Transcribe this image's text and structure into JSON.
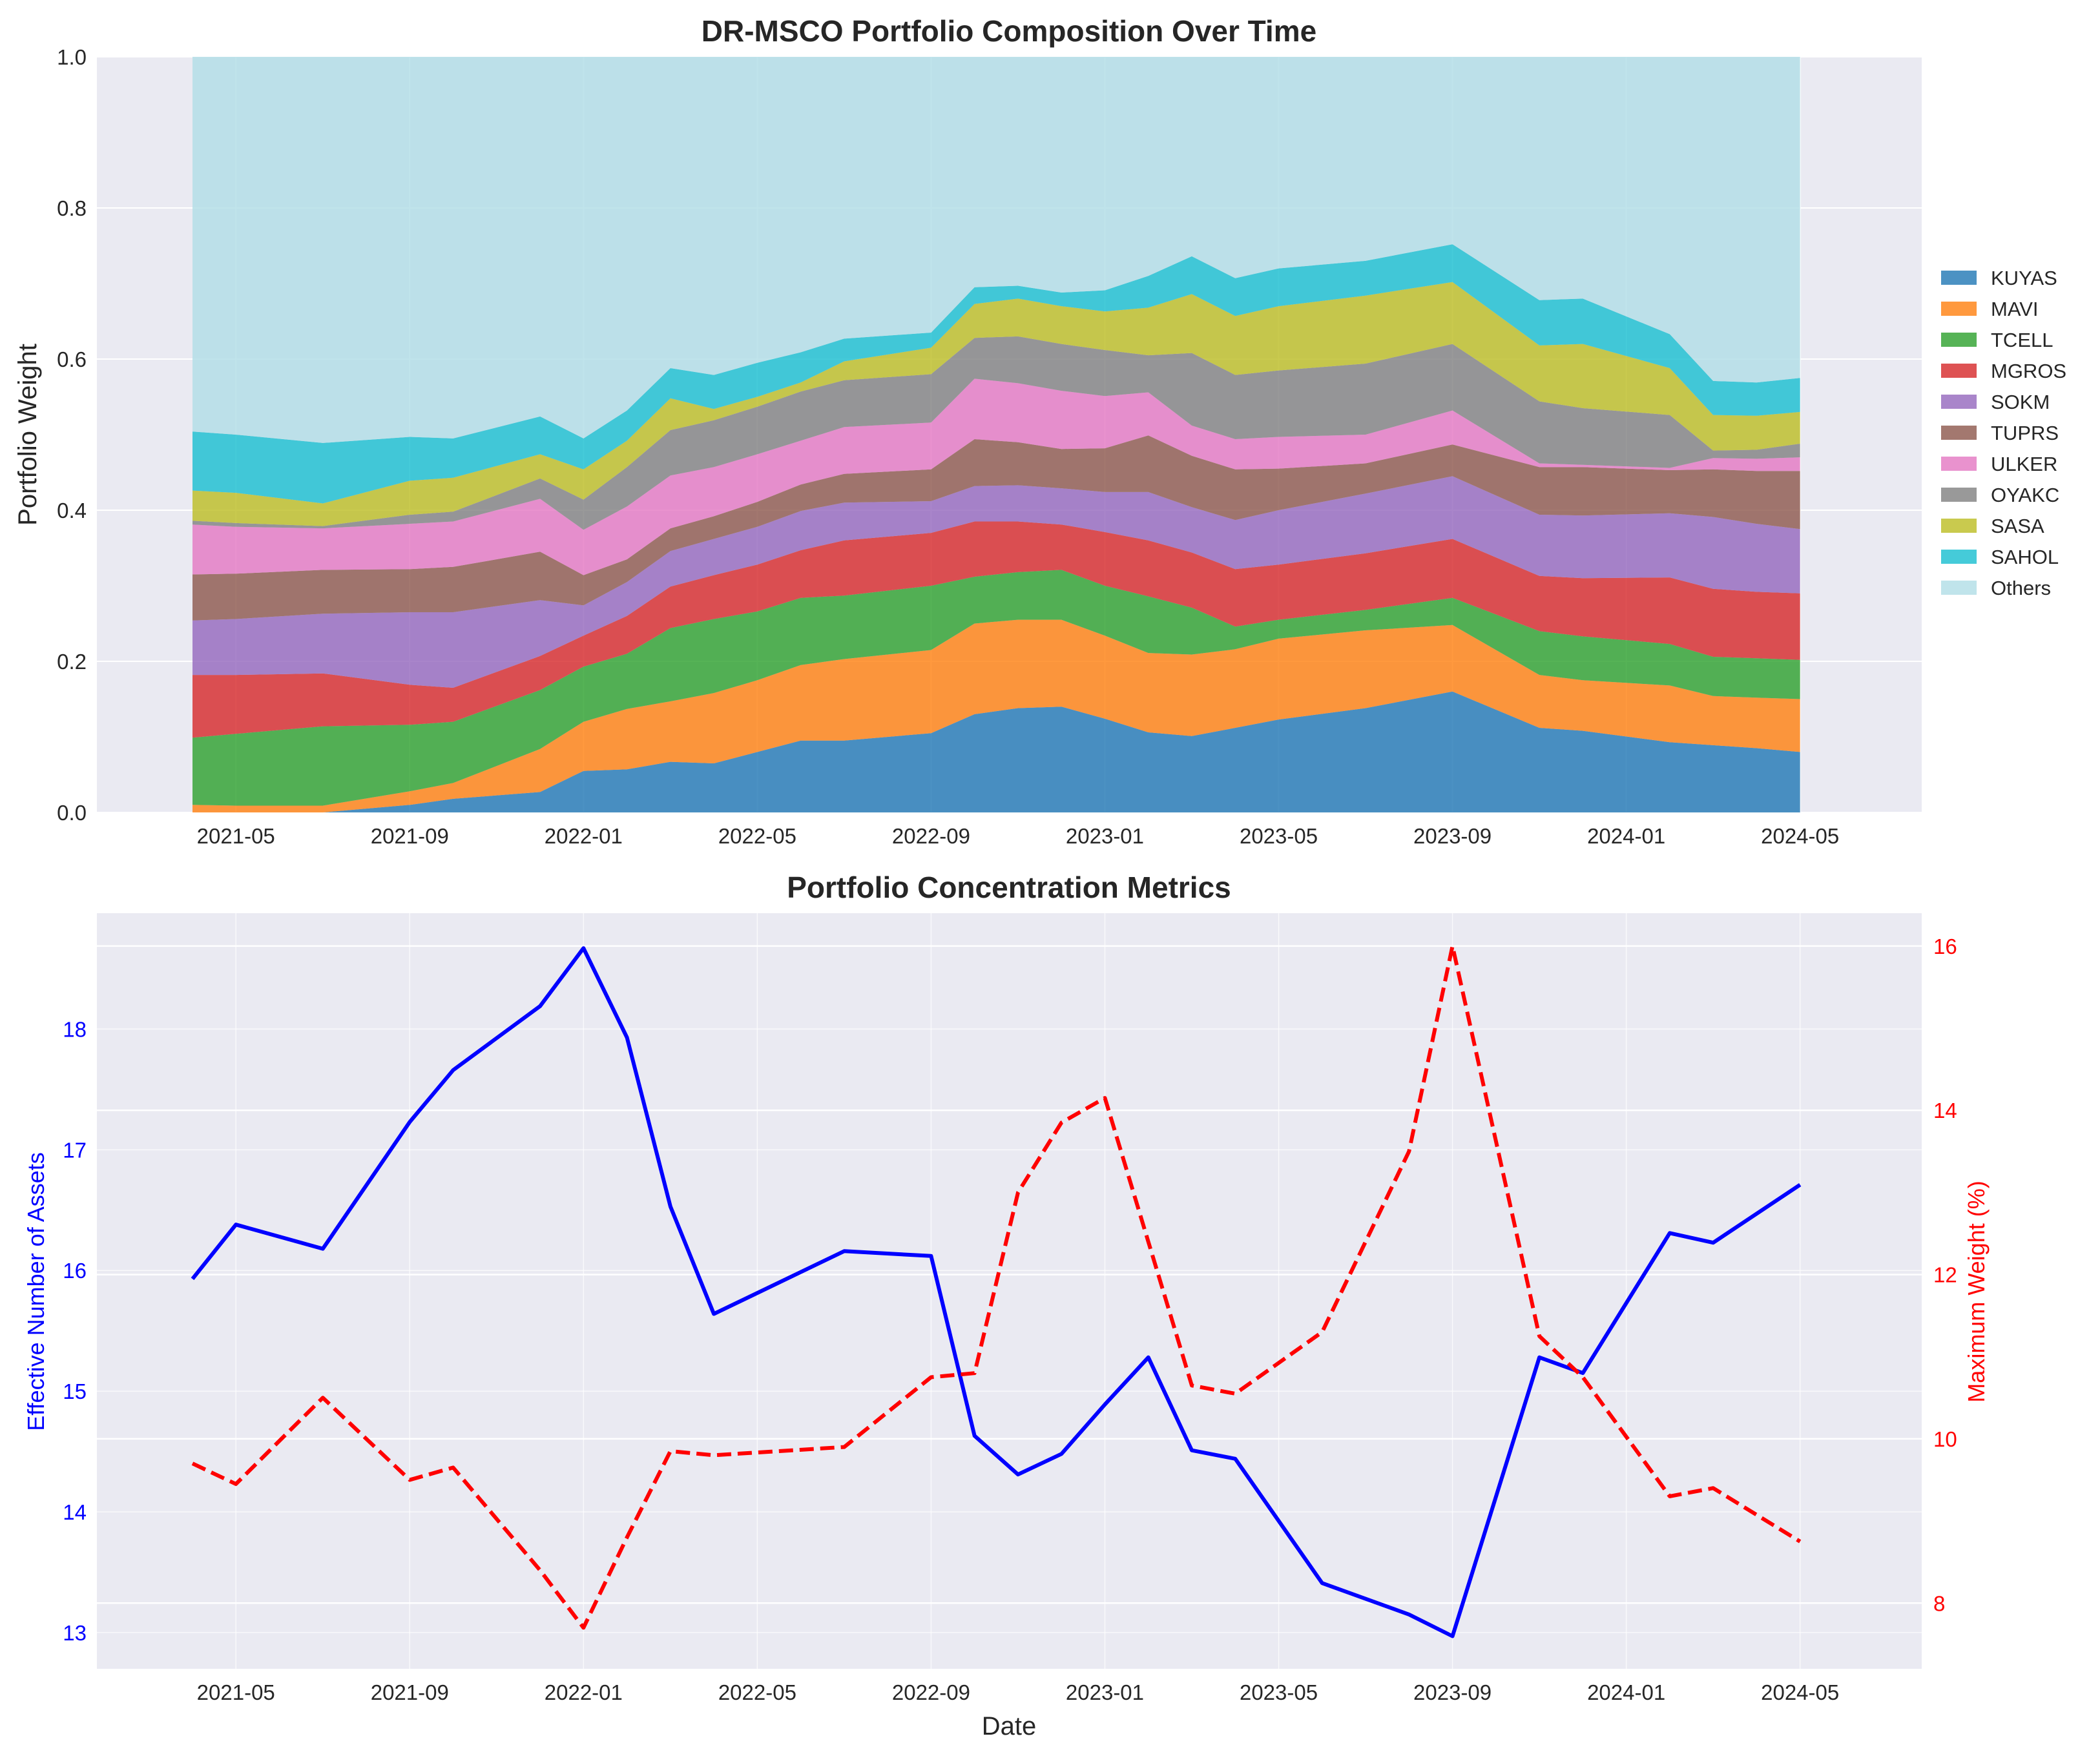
{
  "chart_data": [
    {
      "type": "area",
      "stacked": true,
      "title": "DR-MSCO Portfolio Composition Over Time",
      "xlabel": "",
      "ylabel": "Portfolio Weight",
      "ylim": [
        0,
        1.0
      ],
      "yticks": [
        "0.0",
        "0.2",
        "0.4",
        "0.6",
        "0.8",
        "1.0"
      ],
      "xticks": [
        "2021-05",
        "2021-09",
        "2022-01",
        "2022-05",
        "2022-09",
        "2023-01",
        "2023-05",
        "2023-09",
        "2024-01",
        "2024-05"
      ],
      "xtick_months": [
        1,
        5,
        9,
        13,
        17,
        21,
        25,
        29,
        33,
        37
      ],
      "xrange_months": [
        -2.2,
        39.8
      ],
      "grid": true,
      "legend_position": "right",
      "x_months": [
        0,
        1,
        3,
        5,
        6,
        8,
        9,
        10,
        11,
        12,
        13,
        14,
        15,
        17,
        18,
        19,
        20,
        21,
        22,
        23,
        24,
        25,
        27,
        29,
        31,
        32,
        34,
        35,
        36,
        37
      ],
      "series": [
        {
          "name": "KUYAS",
          "color": "#1f77b4",
          "values": [
            0.0,
            0.0,
            0.0,
            0.01,
            0.018,
            0.027,
            0.055,
            0.057,
            0.067,
            0.065,
            0.08,
            0.095,
            0.095,
            0.105,
            0.13,
            0.138,
            0.14,
            0.124,
            0.106,
            0.101,
            0.112,
            0.123,
            0.138,
            0.16,
            0.112,
            0.108,
            0.093,
            0.089,
            0.085,
            0.08
          ]
        },
        {
          "name": "MAVI",
          "color": "#ff7f0e",
          "values": [
            0.01,
            0.009,
            0.009,
            0.018,
            0.021,
            0.057,
            0.065,
            0.08,
            0.08,
            0.093,
            0.095,
            0.1,
            0.108,
            0.11,
            0.12,
            0.117,
            0.115,
            0.11,
            0.105,
            0.108,
            0.104,
            0.107,
            0.103,
            0.088,
            0.07,
            0.067,
            0.075,
            0.065,
            0.067,
            0.07
          ]
        },
        {
          "name": "TCELL",
          "color": "#2ca02c",
          "values": [
            0.089,
            0.095,
            0.105,
            0.088,
            0.081,
            0.078,
            0.073,
            0.073,
            0.097,
            0.098,
            0.091,
            0.089,
            0.084,
            0.085,
            0.062,
            0.063,
            0.066,
            0.066,
            0.075,
            0.062,
            0.03,
            0.025,
            0.027,
            0.036,
            0.058,
            0.058,
            0.055,
            0.052,
            0.052,
            0.052
          ]
        },
        {
          "name": "MGROS",
          "color": "#d62728",
          "values": [
            0.083,
            0.078,
            0.07,
            0.053,
            0.045,
            0.045,
            0.041,
            0.05,
            0.055,
            0.058,
            0.062,
            0.063,
            0.073,
            0.07,
            0.073,
            0.067,
            0.06,
            0.071,
            0.074,
            0.073,
            0.076,
            0.073,
            0.075,
            0.078,
            0.073,
            0.077,
            0.088,
            0.09,
            0.088,
            0.088
          ]
        },
        {
          "name": "SOKM",
          "color": "#9467bd",
          "values": [
            0.072,
            0.074,
            0.079,
            0.096,
            0.1,
            0.074,
            0.04,
            0.045,
            0.047,
            0.048,
            0.05,
            0.052,
            0.05,
            0.042,
            0.047,
            0.048,
            0.048,
            0.053,
            0.064,
            0.06,
            0.065,
            0.072,
            0.079,
            0.083,
            0.081,
            0.083,
            0.085,
            0.095,
            0.09,
            0.085
          ]
        },
        {
          "name": "TUPRS",
          "color": "#8c564b",
          "values": [
            0.061,
            0.06,
            0.058,
            0.057,
            0.06,
            0.064,
            0.04,
            0.03,
            0.03,
            0.03,
            0.033,
            0.035,
            0.038,
            0.042,
            0.062,
            0.057,
            0.052,
            0.058,
            0.075,
            0.068,
            0.067,
            0.055,
            0.04,
            0.042,
            0.063,
            0.064,
            0.057,
            0.063,
            0.07,
            0.077
          ]
        },
        {
          "name": "ULKER",
          "color": "#e377c2",
          "values": [
            0.066,
            0.062,
            0.055,
            0.06,
            0.06,
            0.07,
            0.06,
            0.07,
            0.07,
            0.065,
            0.063,
            0.058,
            0.062,
            0.062,
            0.08,
            0.078,
            0.077,
            0.069,
            0.057,
            0.04,
            0.04,
            0.042,
            0.038,
            0.045,
            0.005,
            0.003,
            0.003,
            0.015,
            0.016,
            0.018
          ]
        },
        {
          "name": "OYAKC",
          "color": "#7f7f7f",
          "values": [
            0.005,
            0.005,
            0.003,
            0.012,
            0.013,
            0.027,
            0.04,
            0.052,
            0.06,
            0.062,
            0.063,
            0.065,
            0.062,
            0.064,
            0.054,
            0.062,
            0.062,
            0.061,
            0.049,
            0.096,
            0.085,
            0.088,
            0.094,
            0.088,
            0.082,
            0.075,
            0.07,
            0.01,
            0.012,
            0.018
          ]
        },
        {
          "name": "SASA",
          "color": "#bcbd22",
          "values": [
            0.04,
            0.04,
            0.03,
            0.045,
            0.045,
            0.032,
            0.04,
            0.035,
            0.042,
            0.015,
            0.013,
            0.012,
            0.025,
            0.035,
            0.045,
            0.05,
            0.05,
            0.051,
            0.063,
            0.078,
            0.078,
            0.085,
            0.09,
            0.082,
            0.074,
            0.085,
            0.062,
            0.047,
            0.045,
            0.042
          ]
        },
        {
          "name": "SAHOL",
          "color": "#17becf",
          "values": [
            0.078,
            0.077,
            0.08,
            0.058,
            0.052,
            0.05,
            0.041,
            0.04,
            0.04,
            0.045,
            0.045,
            0.04,
            0.03,
            0.02,
            0.022,
            0.017,
            0.018,
            0.028,
            0.042,
            0.05,
            0.05,
            0.05,
            0.046,
            0.05,
            0.06,
            0.06,
            0.045,
            0.045,
            0.044,
            0.045
          ]
        },
        {
          "name": "Others",
          "color": "#b0dde6",
          "values": [
            0.496,
            0.5,
            0.511,
            0.503,
            0.505,
            0.476,
            0.505,
            0.468,
            0.412,
            0.421,
            0.405,
            0.391,
            0.373,
            0.365,
            0.305,
            0.303,
            0.312,
            0.309,
            0.29,
            0.264,
            0.293,
            0.28,
            0.27,
            0.248,
            0.322,
            0.32,
            0.367,
            0.429,
            0.431,
            0.425
          ]
        }
      ]
    },
    {
      "type": "line",
      "title": "Portfolio Concentration Metrics",
      "xlabel": "Date",
      "ylabel_left": "Effective Number of Assets",
      "ylabel_right": "Maximum Weight (%)",
      "ylim_left": [
        12.7,
        18.96
      ],
      "ylim_right": [
        7.2,
        16.4
      ],
      "yticks_left": [
        13,
        14,
        15,
        16,
        17,
        18
      ],
      "yticks_right": [
        8,
        10,
        12,
        14,
        16
      ],
      "xticks": [
        "2021-05",
        "2021-09",
        "2022-01",
        "2022-05",
        "2022-09",
        "2023-01",
        "2023-05",
        "2023-09",
        "2024-01",
        "2024-05"
      ],
      "xtick_months": [
        1,
        5,
        9,
        13,
        17,
        21,
        25,
        29,
        33,
        37
      ],
      "xrange_months": [
        -2.2,
        39.8
      ],
      "grid": true,
      "x_months": [
        0,
        1,
        3,
        5,
        6,
        8,
        9,
        10,
        11,
        12,
        15,
        17,
        18,
        19,
        20,
        21,
        22,
        23,
        24,
        26,
        28,
        29,
        31,
        32,
        34,
        35,
        37
      ],
      "series": [
        {
          "name": "Effective Number of Assets",
          "axis": "left",
          "color": "#0000ff",
          "dashed": false,
          "values": [
            15.93,
            16.38,
            16.18,
            17.23,
            17.66,
            18.19,
            18.67,
            17.93,
            16.53,
            15.64,
            16.16,
            16.12,
            14.63,
            14.31,
            14.48,
            14.89,
            15.28,
            14.51,
            14.44,
            13.41,
            13.15,
            12.97,
            15.28,
            15.15,
            16.31,
            16.23,
            16.71
          ]
        },
        {
          "name": "Maximum Weight (%)",
          "axis": "right",
          "color": "#ff0000",
          "dashed": true,
          "values": [
            9.7,
            9.45,
            10.5,
            9.5,
            9.65,
            8.4,
            7.7,
            8.8,
            9.85,
            9.8,
            9.9,
            10.75,
            10.8,
            13.0,
            13.85,
            14.15,
            12.4,
            10.65,
            10.55,
            11.3,
            13.5,
            16.0,
            11.25,
            10.75,
            9.3,
            9.4,
            8.75
          ]
        }
      ]
    }
  ]
}
